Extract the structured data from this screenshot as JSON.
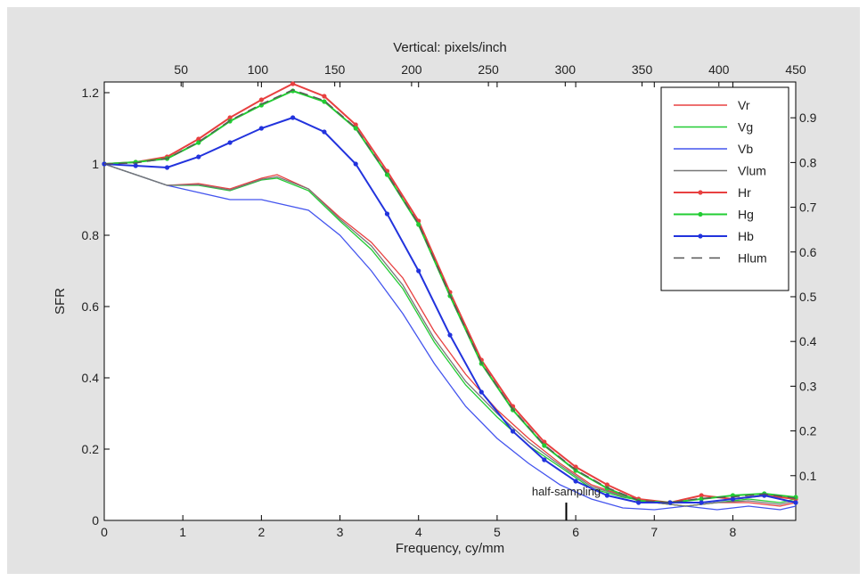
{
  "chart_data": {
    "type": "line",
    "xlabel": "Frequency, cy/mm",
    "ylabel": "SFR",
    "top_xlabel": "Vertical: pixels/inch",
    "xlim": [
      0,
      8.8
    ],
    "ylim": [
      0,
      1.23
    ],
    "xticks": [
      0,
      1,
      2,
      3,
      4,
      5,
      6,
      7,
      8
    ],
    "yticks": [
      0,
      0.2,
      0.4,
      0.6,
      0.8,
      1,
      1.2
    ],
    "yticklabels": [
      "0",
      "0.2",
      "0.4",
      "0.6",
      "0.8",
      "1",
      "1.2"
    ],
    "top_ticks": [
      50,
      100,
      150,
      200,
      250,
      300,
      350,
      400,
      450
    ],
    "top_max": 450,
    "right_ticks": [
      "0.1",
      "0.2",
      "0.3",
      "0.4",
      "0.5",
      "0.6",
      "0.7",
      "0.8",
      "0.9"
    ],
    "right_ylim": [
      0,
      0.98
    ],
    "annotation": {
      "text": "half-sampling",
      "x": 5.88
    },
    "legend_position": "top-right",
    "grid": false,
    "series": [
      {
        "name": "Vr",
        "color": "#e84040",
        "style": "solid",
        "marker": false,
        "x": [
          0,
          0.4,
          0.8,
          1.2,
          1.6,
          2.0,
          2.2,
          2.6,
          3.0,
          3.4,
          3.8,
          4.2,
          4.6,
          5.0,
          5.4,
          5.8,
          6.2,
          6.6,
          7.0,
          7.4,
          7.8,
          8.2,
          8.6,
          8.8
        ],
        "y": [
          1,
          0.97,
          0.94,
          0.945,
          0.93,
          0.96,
          0.97,
          0.93,
          0.85,
          0.78,
          0.68,
          0.53,
          0.41,
          0.31,
          0.23,
          0.16,
          0.1,
          0.07,
          0.05,
          0.04,
          0.05,
          0.05,
          0.04,
          0.05
        ]
      },
      {
        "name": "Vg",
        "color": "#22cc33",
        "style": "solid",
        "marker": false,
        "x": [
          0,
          0.4,
          0.8,
          1.2,
          1.6,
          2.0,
          2.2,
          2.6,
          3.0,
          3.4,
          3.8,
          4.2,
          4.6,
          5.0,
          5.4,
          5.8,
          6.2,
          6.6,
          7.0,
          7.4,
          7.8,
          8.2,
          8.6,
          8.8
        ],
        "y": [
          1,
          0.97,
          0.94,
          0.94,
          0.925,
          0.955,
          0.96,
          0.925,
          0.84,
          0.76,
          0.65,
          0.5,
          0.38,
          0.29,
          0.21,
          0.15,
          0.09,
          0.065,
          0.05,
          0.04,
          0.05,
          0.06,
          0.05,
          0.06
        ]
      },
      {
        "name": "Vb",
        "color": "#4455ee",
        "style": "solid",
        "marker": false,
        "x": [
          0,
          0.4,
          0.8,
          1.2,
          1.6,
          2.0,
          2.2,
          2.6,
          3.0,
          3.4,
          3.8,
          4.2,
          4.6,
          5.0,
          5.4,
          5.8,
          6.2,
          6.6,
          7.0,
          7.4,
          7.8,
          8.2,
          8.6,
          8.8
        ],
        "y": [
          1,
          0.97,
          0.94,
          0.92,
          0.9,
          0.9,
          0.89,
          0.87,
          0.8,
          0.7,
          0.58,
          0.44,
          0.32,
          0.23,
          0.16,
          0.1,
          0.06,
          0.035,
          0.03,
          0.04,
          0.03,
          0.04,
          0.03,
          0.04
        ]
      },
      {
        "name": "Vlum",
        "color": "#777777",
        "style": "solid",
        "marker": false,
        "x": [
          0,
          0.4,
          0.8,
          1.2,
          1.6,
          2.0,
          2.2,
          2.6,
          3.0,
          3.4,
          3.8,
          4.2,
          4.6,
          5.0,
          5.4,
          5.8,
          6.2,
          6.6,
          7.0,
          7.4,
          7.8,
          8.2,
          8.6,
          8.8
        ],
        "y": [
          1,
          0.97,
          0.94,
          0.942,
          0.927,
          0.957,
          0.964,
          0.93,
          0.845,
          0.77,
          0.66,
          0.51,
          0.39,
          0.3,
          0.22,
          0.155,
          0.095,
          0.068,
          0.05,
          0.04,
          0.05,
          0.055,
          0.045,
          0.055
        ]
      },
      {
        "name": "Hr",
        "color": "#e84040",
        "style": "solid",
        "marker": true,
        "x": [
          0,
          0.4,
          0.8,
          1.2,
          1.6,
          2.0,
          2.4,
          2.8,
          3.2,
          3.6,
          4.0,
          4.4,
          4.8,
          5.2,
          5.6,
          6.0,
          6.4,
          6.8,
          7.2,
          7.6,
          8.0,
          8.4,
          8.8
        ],
        "y": [
          1,
          1.005,
          1.02,
          1.07,
          1.13,
          1.18,
          1.225,
          1.19,
          1.11,
          0.98,
          0.84,
          0.64,
          0.45,
          0.32,
          0.22,
          0.15,
          0.1,
          0.06,
          0.05,
          0.07,
          0.06,
          0.07,
          0.06
        ]
      },
      {
        "name": "Hg",
        "color": "#22cc33",
        "style": "solid",
        "marker": true,
        "x": [
          0,
          0.4,
          0.8,
          1.2,
          1.6,
          2.0,
          2.4,
          2.8,
          3.2,
          3.6,
          4.0,
          4.4,
          4.8,
          5.2,
          5.6,
          6.0,
          6.4,
          6.8,
          7.2,
          7.6,
          8.0,
          8.4,
          8.8
        ],
        "y": [
          1,
          1.005,
          1.015,
          1.06,
          1.12,
          1.165,
          1.205,
          1.175,
          1.1,
          0.97,
          0.83,
          0.63,
          0.44,
          0.31,
          0.21,
          0.14,
          0.09,
          0.055,
          0.05,
          0.06,
          0.07,
          0.075,
          0.065
        ]
      },
      {
        "name": "Hb",
        "color": "#2233dd",
        "style": "solid",
        "marker": true,
        "x": [
          0,
          0.4,
          0.8,
          1.2,
          1.6,
          2.0,
          2.4,
          2.8,
          3.2,
          3.6,
          4.0,
          4.4,
          4.8,
          5.2,
          5.6,
          6.0,
          6.4,
          6.8,
          7.2,
          7.6,
          8.0,
          8.4,
          8.8
        ],
        "y": [
          1,
          0.995,
          0.99,
          1.02,
          1.06,
          1.1,
          1.13,
          1.09,
          1.0,
          0.86,
          0.7,
          0.52,
          0.36,
          0.25,
          0.17,
          0.11,
          0.07,
          0.05,
          0.05,
          0.05,
          0.06,
          0.07,
          0.05
        ]
      },
      {
        "name": "Hlum",
        "color": "#555555",
        "style": "dashed",
        "marker": false,
        "x": [
          0,
          0.4,
          0.8,
          1.2,
          1.6,
          2.0,
          2.4,
          2.8,
          3.2,
          3.6,
          4.0,
          4.4,
          4.8,
          5.2,
          5.6,
          6.0,
          6.4,
          6.8,
          7.2,
          7.6,
          8.0,
          8.4,
          8.8
        ],
        "y": [
          1,
          1.003,
          1.015,
          1.062,
          1.122,
          1.168,
          1.208,
          1.178,
          1.102,
          0.972,
          0.832,
          0.632,
          0.442,
          0.312,
          0.212,
          0.142,
          0.092,
          0.056,
          0.05,
          0.062,
          0.066,
          0.074,
          0.062
        ]
      }
    ]
  }
}
